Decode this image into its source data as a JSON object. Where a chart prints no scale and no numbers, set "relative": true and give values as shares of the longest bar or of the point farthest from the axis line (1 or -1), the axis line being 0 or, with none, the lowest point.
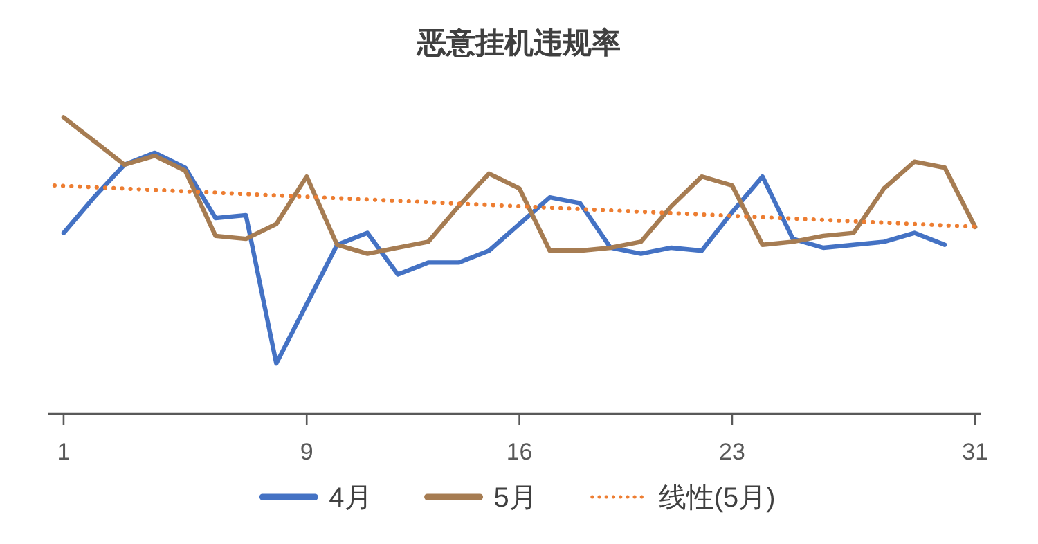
{
  "chart_data": {
    "type": "line",
    "title": "恶意挂机违规率",
    "relative": true,
    "legend": "bottom",
    "x": [
      1,
      2,
      3,
      4,
      5,
      6,
      7,
      8,
      9,
      10,
      11,
      12,
      13,
      14,
      15,
      16,
      17,
      18,
      19,
      20,
      21,
      22,
      23,
      24,
      25,
      26,
      27,
      28,
      29,
      30,
      31
    ],
    "xlim": [
      0.5,
      31.2
    ],
    "xticks": [
      1,
      9,
      16,
      23,
      31
    ],
    "series": [
      {
        "name": "4月",
        "color": "#4472c4",
        "values": [
          0.61,
          0.73,
          0.84,
          0.88,
          0.83,
          0.66,
          0.67,
          0.17,
          0.37,
          0.57,
          0.61,
          0.47,
          0.51,
          0.51,
          0.55,
          0.64,
          0.73,
          0.71,
          0.56,
          0.54,
          0.56,
          0.55,
          0.68,
          0.8,
          0.59,
          0.56,
          0.57,
          0.58,
          0.61,
          0.57,
          null
        ]
      },
      {
        "name": "5月",
        "color": "#a67c52",
        "values": [
          1.0,
          0.92,
          0.84,
          0.87,
          0.82,
          0.6,
          0.59,
          0.64,
          0.8,
          0.57,
          0.54,
          0.56,
          0.58,
          0.7,
          0.81,
          0.76,
          0.55,
          0.55,
          0.56,
          0.58,
          0.7,
          0.8,
          0.77,
          0.57,
          0.58,
          0.6,
          0.61,
          0.76,
          0.85,
          0.83,
          0.63
        ]
      },
      {
        "name": "线性(5月)",
        "color": "#ed7d31",
        "line_style": "dotted",
        "x": [
          0.7,
          31.2
        ],
        "values": [
          0.77,
          0.63
        ]
      }
    ]
  }
}
